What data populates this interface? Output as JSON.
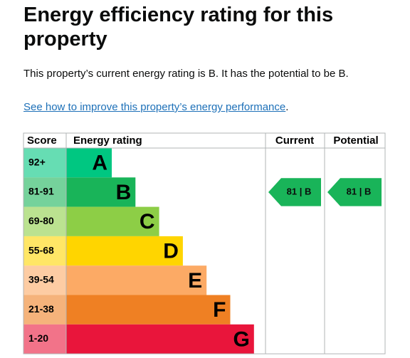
{
  "header": {
    "title": "Energy efficiency rating for this property"
  },
  "summary": "This property’s current energy rating is B. It has the potential to be B.",
  "link": {
    "text": "See how to improve this property’s energy performance",
    "suffix": "."
  },
  "table": {
    "columns": [
      "Score",
      "Energy rating",
      "Current",
      "Potential"
    ],
    "rows": [
      {
        "score": "92+",
        "band": "A",
        "color": "#00c781"
      },
      {
        "score": "81-91",
        "band": "B",
        "color": "#19b459"
      },
      {
        "score": "69-80",
        "band": "C",
        "color": "#8dce46"
      },
      {
        "score": "55-68",
        "band": "D",
        "color": "#ffd500"
      },
      {
        "score": "39-54",
        "band": "E",
        "color": "#fcaa65"
      },
      {
        "score": "21-38",
        "band": "F",
        "color": "#ef8023"
      },
      {
        "score": "1-20",
        "band": "G",
        "color": "#e9153b"
      }
    ],
    "current": {
      "label": "81 | B",
      "band": "B"
    },
    "potential": {
      "label": "81 | B",
      "band": "B"
    }
  }
}
